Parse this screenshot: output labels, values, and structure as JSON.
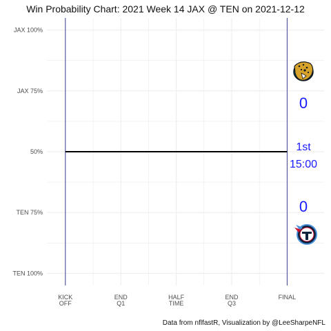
{
  "chart_data": {
    "type": "line",
    "title": "Win Probability Chart: 2021 Week 14 JAX @ TEN on 2021-12-12",
    "caption": "Data from nflfastR, Visualization by @LeeSharpeNFL",
    "y_tick_labels": [
      "JAX 100%",
      "JAX 75%",
      "50%",
      "TEN 75%",
      "TEN 100%"
    ],
    "y_ticks": [
      1.0,
      0.75,
      0.5,
      0.25,
      0.0
    ],
    "x_tick_labels": [
      [
        "KICK",
        "OFF"
      ],
      [
        "END",
        "Q1"
      ],
      [
        "HALF",
        "TIME"
      ],
      [
        "END",
        "Q3"
      ],
      [
        "FINAL"
      ]
    ],
    "x_ticks": [
      0,
      900,
      1800,
      2700,
      3600
    ],
    "xlim": [
      -300,
      4200
    ],
    "ylim": [
      -0.05,
      1.05
    ],
    "series": [
      {
        "x": [
          0,
          3600
        ],
        "y": [
          0.5,
          0.5
        ]
      }
    ],
    "reference_lines_x": [
      0,
      3600
    ],
    "colors": {
      "line": "#000000",
      "vline": "#3b3f8f",
      "score": "#1a1aff",
      "grid": "#ebebeb"
    },
    "annotations": {
      "away_team": "JAX",
      "home_team": "TEN",
      "away_score": "0",
      "home_score": "0",
      "quarter": "1st",
      "clock": "15:00"
    },
    "logos": {
      "away": "jaguar-logo",
      "home": "titans-logo"
    }
  }
}
